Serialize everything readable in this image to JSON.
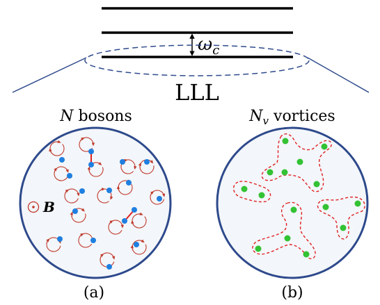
{
  "top": {
    "gap_symbol": "ω",
    "gap_subscript": "c",
    "level_label": "LLL"
  },
  "panel_a": {
    "count_symbol": "N",
    "count_text": " bosons",
    "field_label": "B",
    "caption": "(a)"
  },
  "panel_b": {
    "count_symbol": "N",
    "count_subscript": "v",
    "count_text": " vortices",
    "caption": "(b)"
  },
  "colors": {
    "circle_stroke": "#2e4a8c",
    "circle_fill": "#f3f6fa",
    "boson_dot": "#1f7fe0",
    "orbit": "#c0392b",
    "vortex_dot": "#33c233",
    "vortex_outline": "#e02020"
  }
}
